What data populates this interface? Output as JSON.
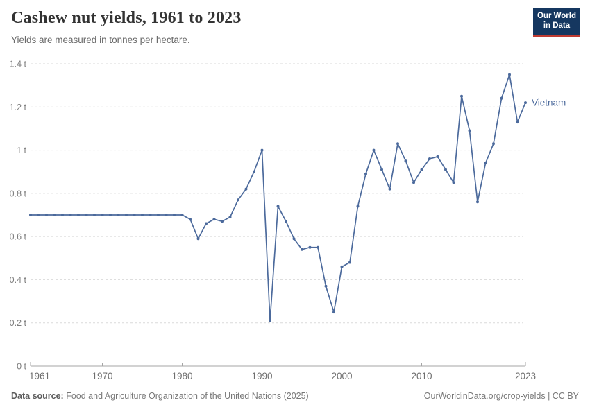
{
  "header": {
    "title": "Cashew nut yields, 1961 to 2023",
    "subtitle": "Yields are measured in tonnes per hectare.",
    "logo": {
      "line1": "Our World",
      "line2": "in Data"
    }
  },
  "footer": {
    "source_label": "Data source:",
    "source_text": " Food and Agriculture Organization of the United Nations (2025)",
    "credit": "OurWorldinData.org/crop-yields | CC BY"
  },
  "colors": {
    "series_blue": "#4c6a9c",
    "grid": "#dadada",
    "axis": "#a5a5a5",
    "logo_navy": "#153760",
    "logo_red": "#bf3b32"
  },
  "chart_data": {
    "type": "line",
    "title": "Cashew nut yields, 1961 to 2023",
    "subtitle": "Yields are measured in tonnes per hectare.",
    "xlabel": "",
    "ylabel": "tonnes per hectare",
    "xlim": [
      1961,
      2023
    ],
    "ylim": [
      0,
      1.4
    ],
    "grid": "horizontal-dashed",
    "legend_position": "end-of-line-label",
    "y_ticks": [
      0,
      0.2,
      0.4,
      0.6,
      0.8,
      1,
      1.2,
      1.4
    ],
    "y_tick_labels": [
      "0 t",
      "0.2 t",
      "0.4 t",
      "0.6 t",
      "0.8 t",
      "1 t",
      "1.2 t",
      "1.4 t"
    ],
    "x_ticks": [
      1961,
      1970,
      1980,
      1990,
      2000,
      2010,
      2023
    ],
    "x_tick_labels": [
      "1961",
      "1970",
      "1980",
      "1990",
      "2000",
      "2010",
      "2023"
    ],
    "series": [
      {
        "name": "Vietnam",
        "color": "#4c6a9c",
        "x": [
          1961,
          1962,
          1963,
          1964,
          1965,
          1966,
          1967,
          1968,
          1969,
          1970,
          1971,
          1972,
          1973,
          1974,
          1975,
          1976,
          1977,
          1978,
          1979,
          1980,
          1981,
          1982,
          1983,
          1984,
          1985,
          1986,
          1987,
          1988,
          1989,
          1990,
          1991,
          1992,
          1993,
          1994,
          1995,
          1996,
          1997,
          1998,
          1999,
          2000,
          2001,
          2002,
          2003,
          2004,
          2005,
          2006,
          2007,
          2008,
          2009,
          2010,
          2011,
          2012,
          2013,
          2014,
          2015,
          2016,
          2017,
          2018,
          2019,
          2020,
          2021,
          2022,
          2023
        ],
        "values": [
          0.7,
          0.7,
          0.7,
          0.7,
          0.7,
          0.7,
          0.7,
          0.7,
          0.7,
          0.7,
          0.7,
          0.7,
          0.7,
          0.7,
          0.7,
          0.7,
          0.7,
          0.7,
          0.7,
          0.7,
          0.68,
          0.59,
          0.66,
          0.68,
          0.67,
          0.69,
          0.77,
          0.82,
          0.9,
          1.0,
          0.21,
          0.74,
          0.67,
          0.59,
          0.54,
          0.55,
          0.55,
          0.37,
          0.25,
          0.46,
          0.48,
          0.74,
          0.89,
          1.0,
          0.91,
          0.82,
          1.03,
          0.95,
          0.85,
          0.91,
          0.96,
          0.97,
          0.91,
          0.85,
          1.25,
          1.09,
          0.76,
          0.94,
          1.03,
          1.24,
          1.35,
          1.13,
          1.22
        ]
      }
    ]
  }
}
